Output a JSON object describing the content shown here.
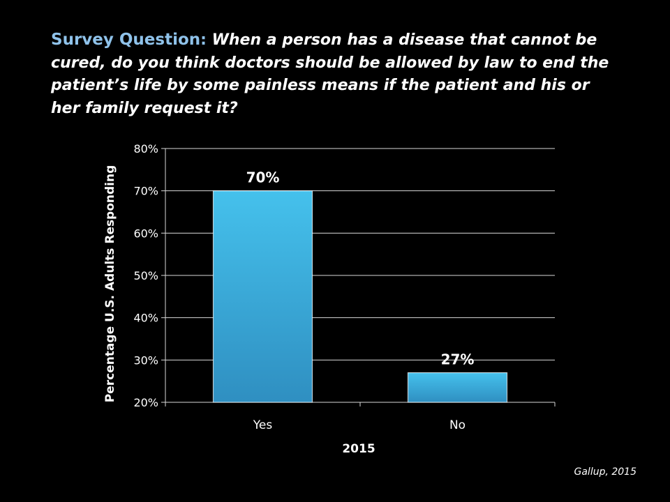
{
  "question": {
    "lead": "Survey Question",
    "colon": ":",
    "text": " When a person has a disease that cannot be cured, do you think doctors should be allowed by law to end the patient’s life by some painless means if the patient and his or her family request it?"
  },
  "source": "Gallup, 2015",
  "colors": {
    "bar": "#3bb4e0",
    "bar_dark": "#2a8fbf",
    "grid": "#d9d9d9",
    "question_lead": "#8fc2ea"
  },
  "chart_data": {
    "type": "bar",
    "categories": [
      "Yes",
      "No"
    ],
    "values": [
      70,
      27
    ],
    "data_labels": [
      "70%",
      "27%"
    ],
    "xlabel": "2015",
    "ylabel": "Percentage U.S. Adults Responding",
    "ylim": [
      20,
      80
    ],
    "yticks": [
      20,
      30,
      40,
      50,
      60,
      70,
      80
    ],
    "ytick_labels": [
      "20%",
      "30%",
      "40%",
      "50%",
      "60%",
      "70%",
      "80%"
    ],
    "grid": true
  }
}
